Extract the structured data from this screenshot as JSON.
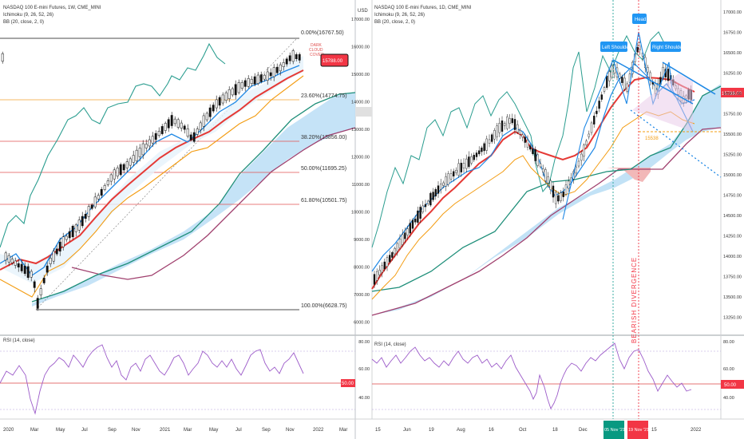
{
  "colors": {
    "cloud_fill": "#bfe0f6",
    "cloud_red": "#f2b8b8",
    "span_a": "#1f8f7a",
    "span_b": "#a0406e",
    "tenkan": "#1e88e5",
    "kijun": "#e53935",
    "chikou": "#2a9d8f",
    "bb": "#f39c12",
    "rsi": "#9c5bc9",
    "fib_gold": "#f0a030",
    "fib_red": "#e05050",
    "up_candle": "#ffffff",
    "down_candle": "#111111",
    "label_red": "#f23645",
    "label_teal": "#089981",
    "label_blue": "#2196f3"
  },
  "left_chart": {
    "legend": [
      "NASDAQ 100 E-mini Futures, 1W, CME_MINI",
      "Ichimoku (9, 26, 52, 26)",
      "BB (20, close, 2, 0)"
    ],
    "rsi_legend": "RSI (14, close)",
    "fib_levels": [
      {
        "label": "0.00%(16767.50)",
        "color": "black"
      },
      {
        "label": "23.60%(14774.75)",
        "color": "gold"
      },
      {
        "label": "38.20%(13856.00)",
        "color": "red"
      },
      {
        "label": "50.00%(11695.25)",
        "color": "red"
      },
      {
        "label": "61.80%(10501.75)",
        "color": "red"
      },
      {
        "label": "100.00%(6628.75)",
        "color": "black"
      }
    ],
    "annotation": [
      "DARK",
      "CLOUD",
      "COVER"
    ],
    "price_tag": "15788.00",
    "rsi_tag": "50.00",
    "x_ticks": [
      "2020",
      "Mar",
      "May",
      "Jul",
      "Sep",
      "Nov",
      "2021",
      "Mar",
      "May",
      "Jul",
      "Sep",
      "Nov",
      "2022",
      "Mar"
    ]
  },
  "right_chart": {
    "legend": [
      "NASDAQ 100 E-mini Futures, 1D, CME_MINI",
      "Ichimoku (9, 26, 52, 26)",
      "BB (20, close, 2, 0)"
    ],
    "rsi_legend": "RSI (14, close)",
    "left_axis_unit": "USD",
    "left_axis_ticks": [
      "17000.00",
      "16000.00",
      "15000.00",
      "14000.00",
      "13000.00",
      "12000.00",
      "11000.00",
      "10000.00",
      "9000.00",
      "8000.00",
      "7000.00",
      "6000.00"
    ],
    "rsi_left_ticks": [
      "80.00",
      "60.00",
      "50.00",
      "40.00"
    ],
    "right_axis_ticks": [
      "17000.00",
      "16750.00",
      "16500.00",
      "16250.00",
      "16000.00",
      "15750.00",
      "15500.00",
      "15250.00",
      "15000.00",
      "14750.00",
      "14500.00",
      "14250.00",
      "14000.00",
      "13750.00",
      "13500.00",
      "13250.00"
    ],
    "rsi_right_ticks": [
      "80.00",
      "60.00",
      "50.00",
      "40.00"
    ],
    "labels": {
      "head": "Head",
      "left_shoulder": "Left Shoulder",
      "right_shoulder": "Right Shoulder"
    },
    "target_label": "15538",
    "divergence_text": "BEARISH DIVERGENCE",
    "price_tag": "15788.00",
    "rsi_tag": "50.00",
    "date_tag_1": "05 Nov '21",
    "date_tag_2": "19 Nov '21",
    "x_ticks": [
      "15",
      "Jun",
      "19",
      "Aug",
      "16",
      "Oct",
      "18",
      "Dec",
      "15",
      "2022"
    ]
  },
  "chart_data": [
    {
      "type": "line",
      "title": "NASDAQ 100 E-mini Futures, 1W, CME_MINI",
      "x": [
        "2020-01",
        "2020-03",
        "2020-05",
        "2020-07",
        "2020-09",
        "2020-11",
        "2021-01",
        "2021-03",
        "2021-05",
        "2021-07",
        "2021-09",
        "2021-11"
      ],
      "series": [
        {
          "name": "NASDAQ 100 E-mini Futures, 1W, CME_MINI",
          "values": [
            8800,
            7200,
            9300,
            10800,
            11300,
            12000,
            13000,
            12900,
            13600,
            14900,
            15200,
            16300
          ]
        }
      ],
      "ylim": [
        6000,
        17500
      ]
    },
    {
      "type": "line",
      "title": "NASDAQ 100 E-mini Futures, 1D, CME_MINI",
      "x": [
        "2021-06-15",
        "2021-07-19",
        "2021-08-16",
        "2021-09-15",
        "2021-10-18",
        "2021-11-05",
        "2021-11-19",
        "2021-12-15"
      ],
      "series": [
        {
          "name": "NASDAQ 100 E-mini Futures, 1D, CME_MINI",
          "values": [
            14100,
            14900,
            15200,
            15500,
            14800,
            16300,
            16700,
            16100
          ]
        }
      ],
      "ylim": [
        13100,
        17100
      ]
    },
    {
      "type": "line",
      "title": "RSI (14, close)",
      "x": [
        "2021-06",
        "2021-08",
        "2021-10",
        "2021-11-05",
        "2021-11-19",
        "2021-12-20"
      ],
      "series": [
        {
          "name": "RSI (14, close)",
          "values": [
            58,
            62,
            32,
            78,
            74,
            44
          ]
        }
      ],
      "ylim": [
        25,
        85
      ]
    }
  ]
}
